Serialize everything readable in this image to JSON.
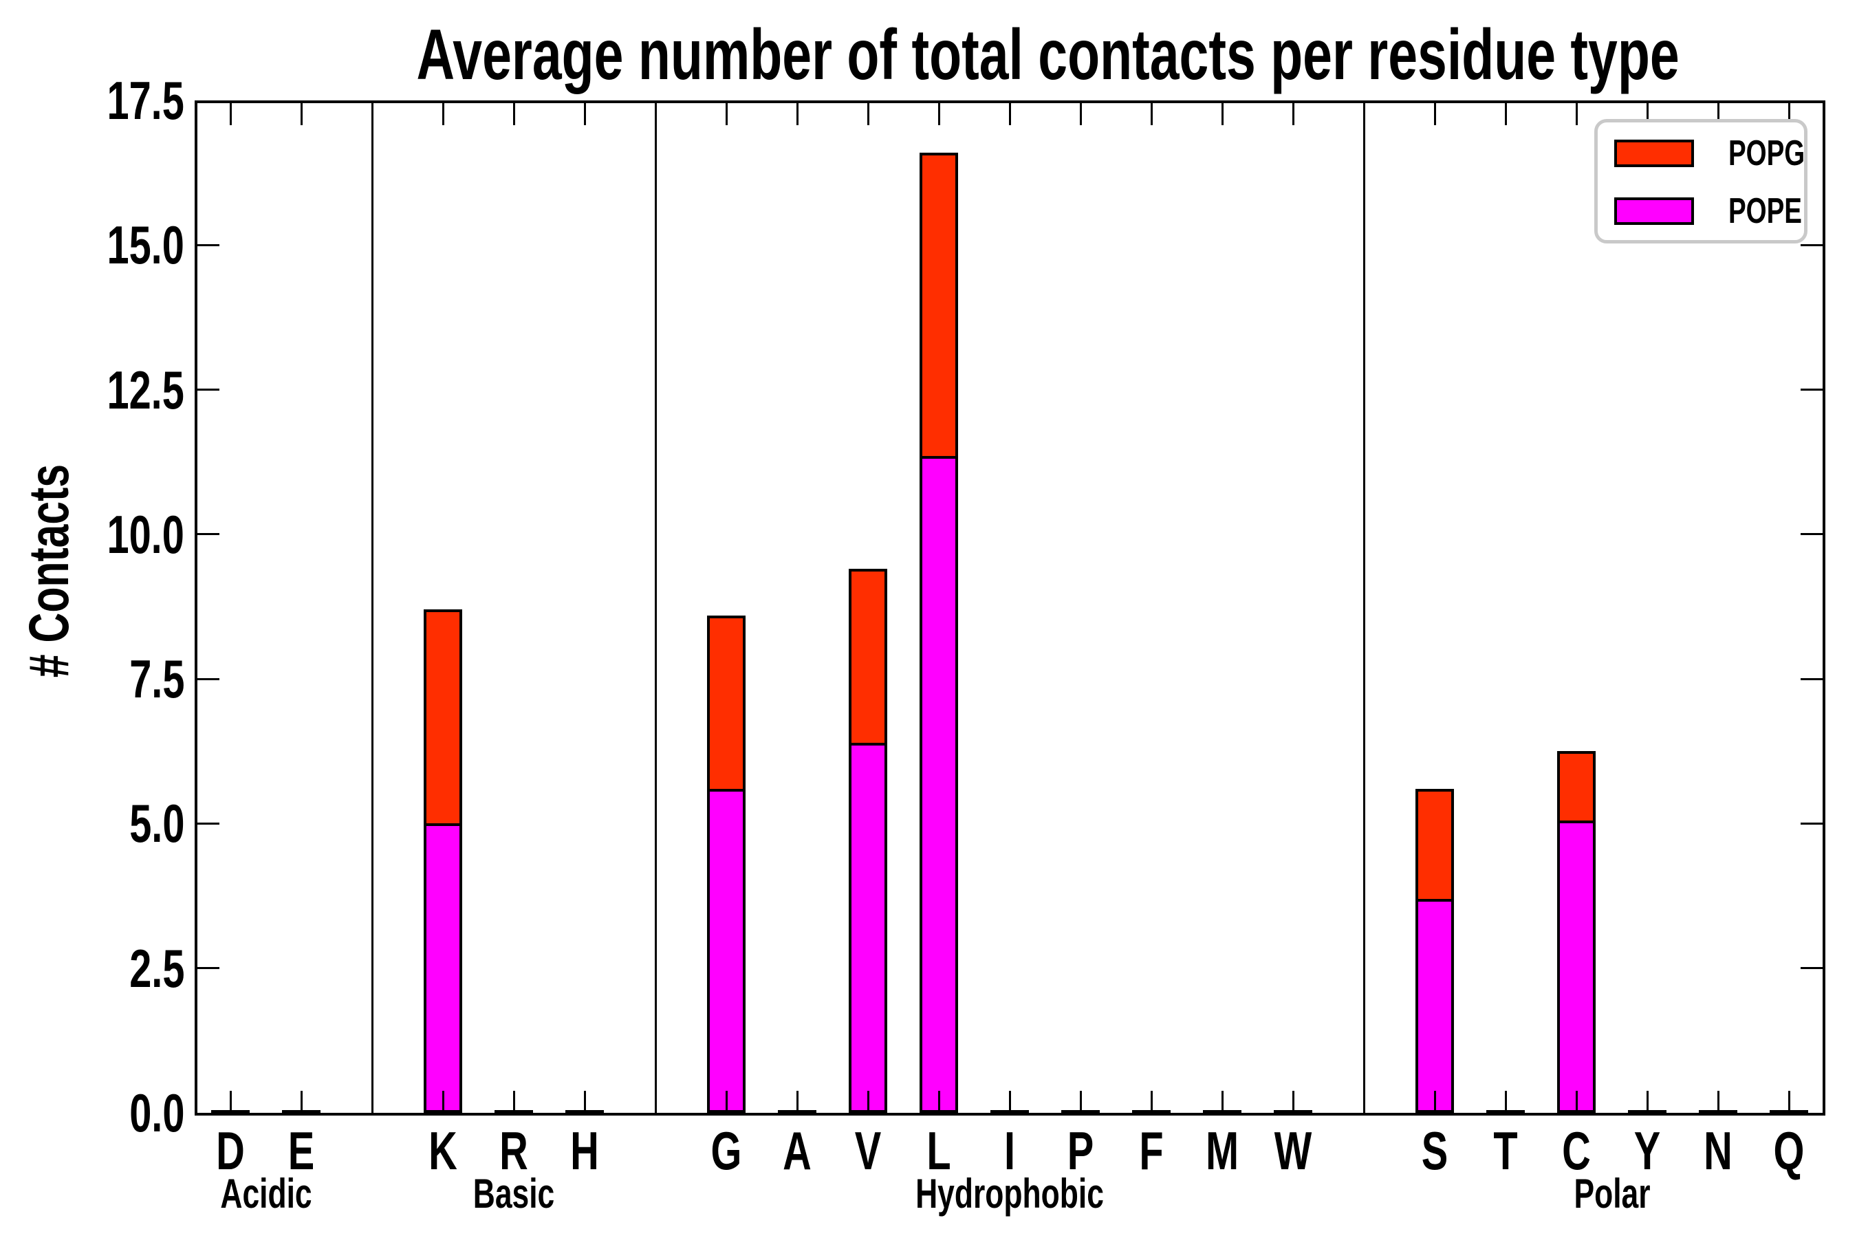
{
  "title": "Average number of total contacts per residue type",
  "ylabel": "# Contacts",
  "legend": {
    "entries": [
      {
        "label": "POPG",
        "color": "#ff2e00"
      },
      {
        "label": "POPE",
        "color": "#ff00ff"
      }
    ]
  },
  "chart_data": {
    "type": "bar",
    "stacked": true,
    "title": "Average number of total contacts per residue type",
    "xlabel": "",
    "ylabel": "# Contacts",
    "ylim": [
      0,
      17.5
    ],
    "yticks": [
      "0.0",
      "2.5",
      "5.0",
      "7.5",
      "10.0",
      "12.5",
      "15.0",
      "17.5"
    ],
    "grid": false,
    "legend_position": "upper right",
    "categories": [
      "D",
      "E",
      "K",
      "R",
      "H",
      "G",
      "A",
      "V",
      "L",
      "I",
      "P",
      "F",
      "M",
      "W",
      "S",
      "T",
      "C",
      "Y",
      "N",
      "Q"
    ],
    "groups": [
      {
        "label": "Acidic",
        "residues": [
          "D",
          "E"
        ]
      },
      {
        "label": "Basic",
        "residues": [
          "K",
          "R",
          "H"
        ]
      },
      {
        "label": "Hydrophobic",
        "residues": [
          "G",
          "A",
          "V",
          "L",
          "I",
          "P",
          "F",
          "M",
          "W"
        ]
      },
      {
        "label": "Polar",
        "residues": [
          "S",
          "T",
          "C",
          "Y",
          "N",
          "Q"
        ]
      }
    ],
    "series": [
      {
        "name": "POPE",
        "color": "#ff00ff",
        "values": [
          0.03,
          0.03,
          5.0,
          0.03,
          0.03,
          5.6,
          0.03,
          6.4,
          11.35,
          0.03,
          0.03,
          0.03,
          0.03,
          0.03,
          3.7,
          0.03,
          5.05,
          0.03,
          0.03,
          0.03
        ]
      },
      {
        "name": "POPG",
        "color": "#ff2e00",
        "values": [
          0,
          0,
          3.7,
          0,
          0,
          3.0,
          0,
          3.0,
          5.25,
          0,
          0,
          0,
          0,
          0,
          1.9,
          0,
          1.2,
          0,
          0,
          0
        ]
      }
    ]
  },
  "layout_colors": {
    "popg": "#ff2e00",
    "pope": "#ff00ff",
    "axis": "#000000",
    "legend_border": "#c9c9c9"
  }
}
